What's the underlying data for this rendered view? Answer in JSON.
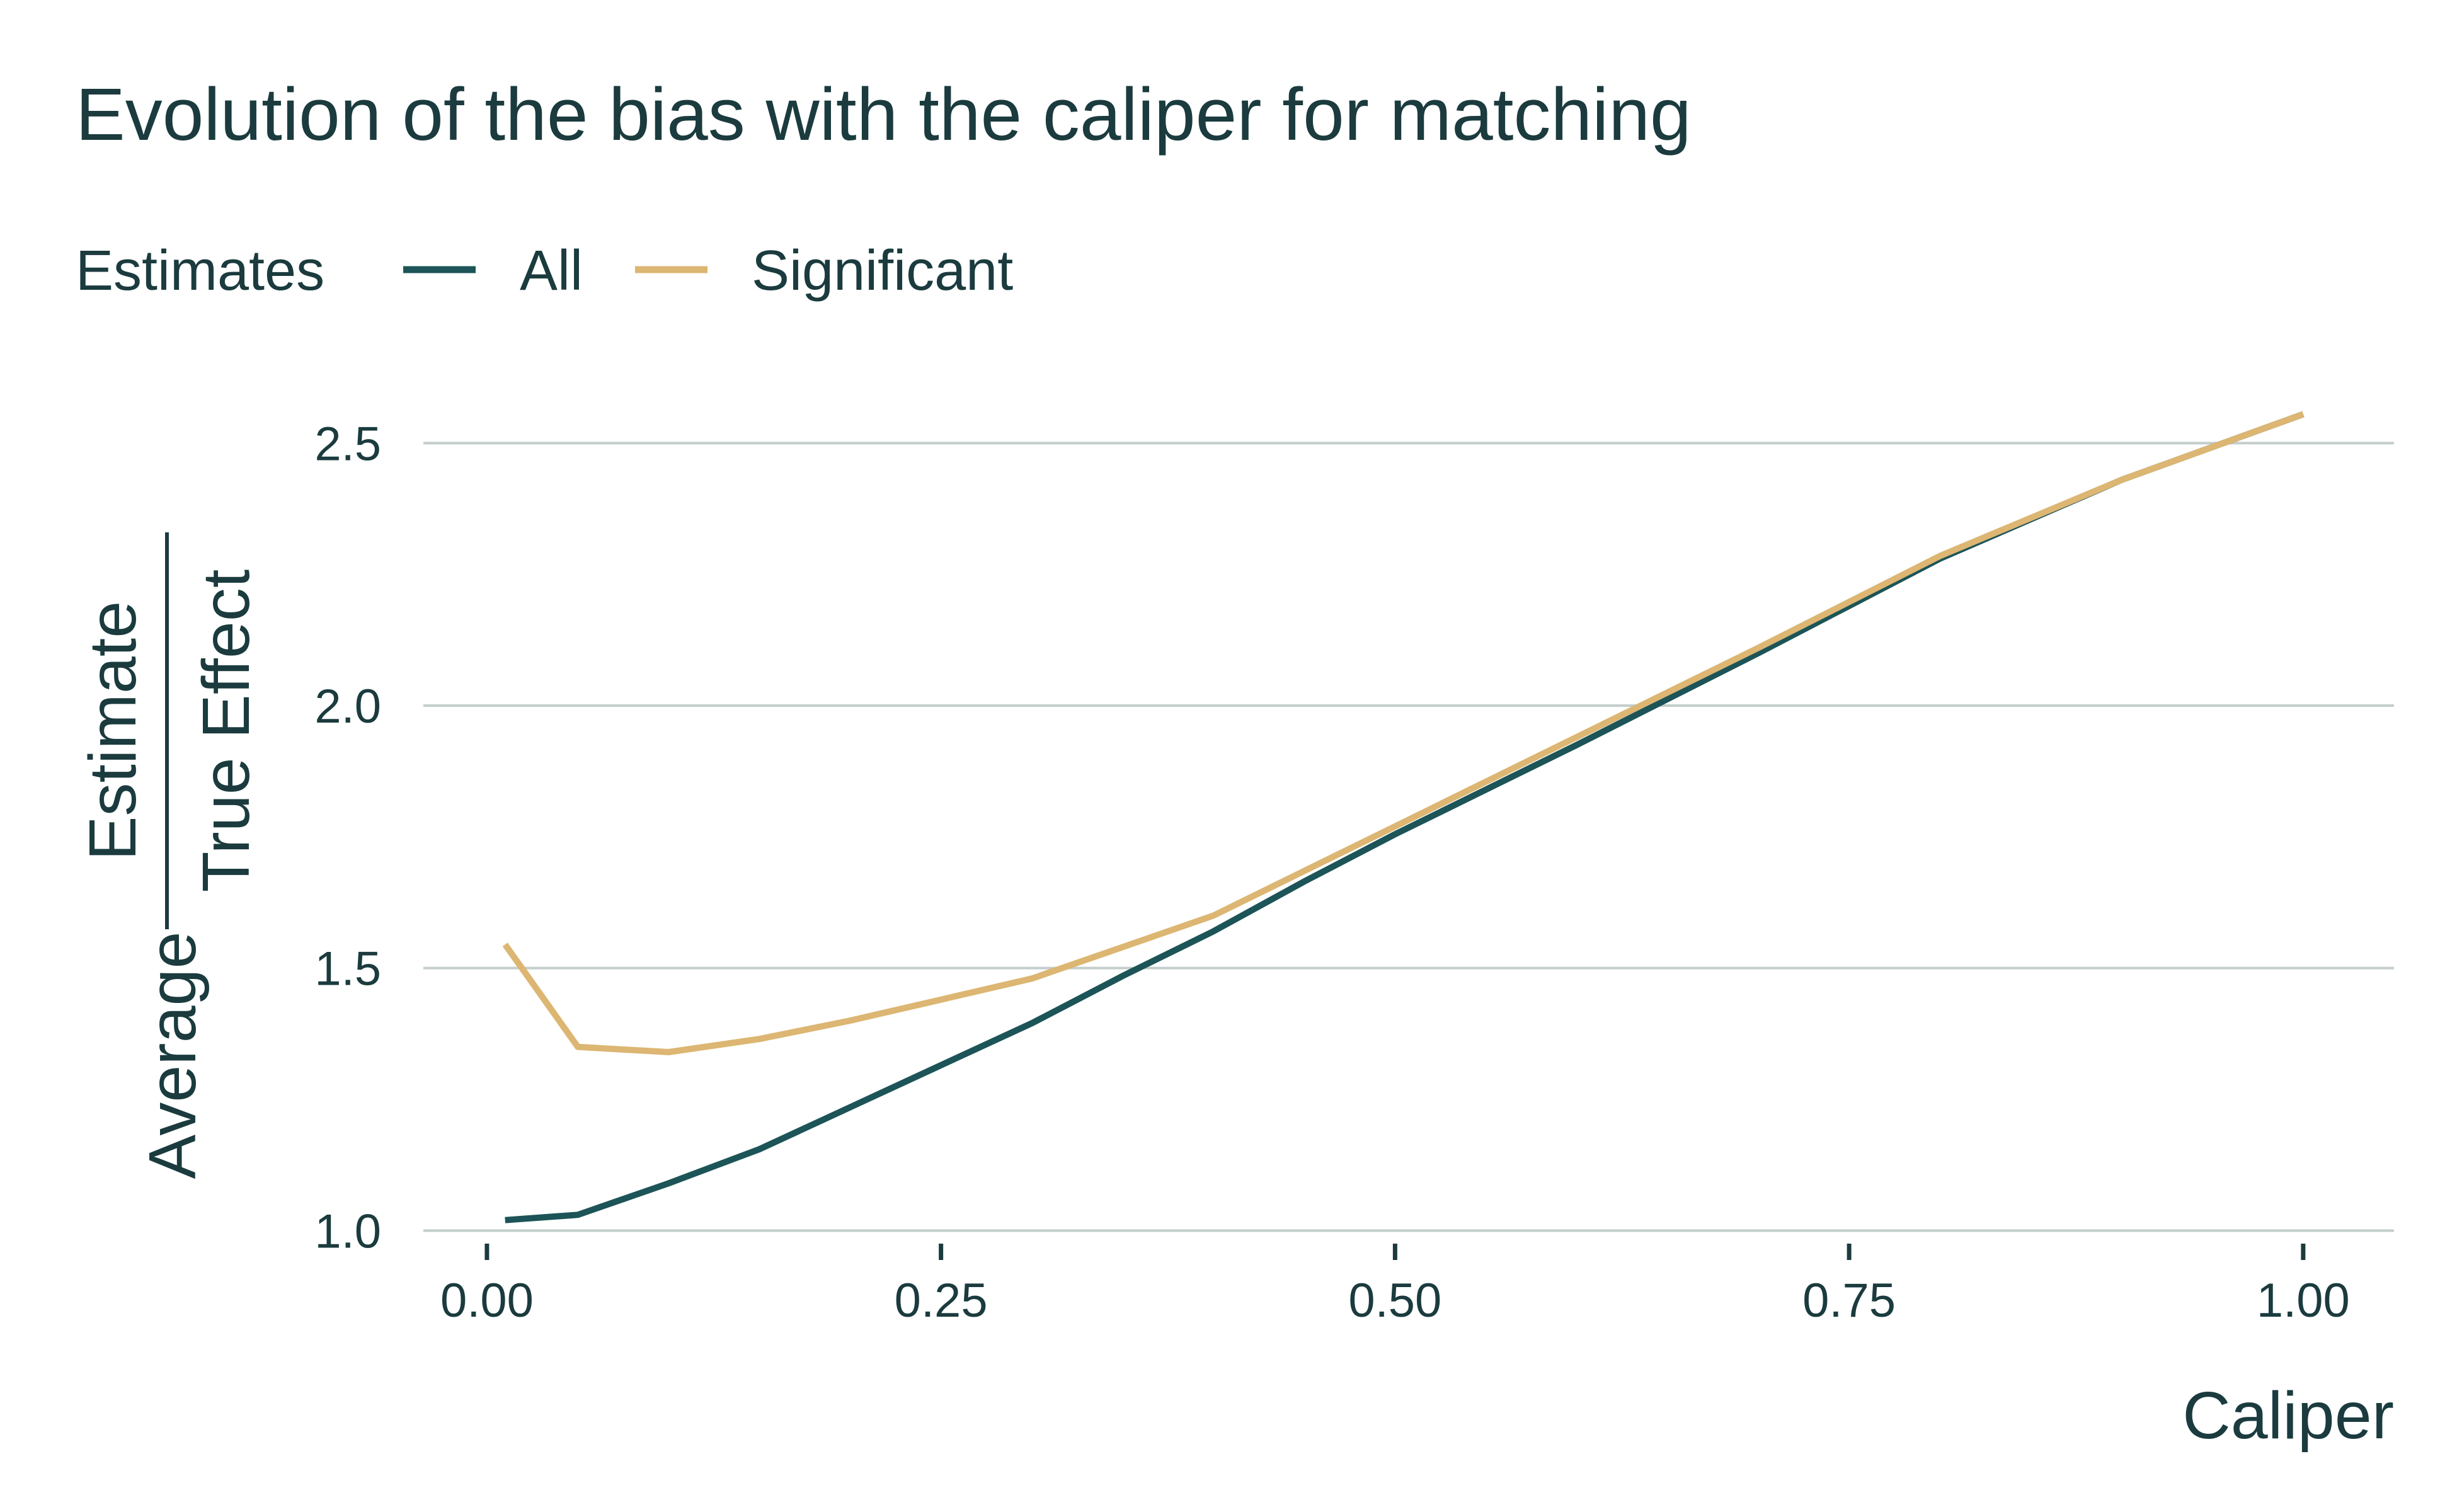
{
  "chart_data": {
    "type": "line",
    "title": "Evolution of the bias with the caliper for matching",
    "legend": {
      "title": "Estimates",
      "position": "top-left"
    },
    "xlabel": "Caliper",
    "ylabel": {
      "prefix": "Average",
      "numerator": "Estimate",
      "denominator": "True Effect"
    },
    "xlim": [
      -0.035,
      1.05
    ],
    "ylim": [
      0.98,
      2.6
    ],
    "x_ticks": [
      0.0,
      0.25,
      0.5,
      0.75,
      1.0
    ],
    "x_tick_labels": [
      "0.00",
      "0.25",
      "0.50",
      "0.75",
      "1.00"
    ],
    "y_ticks": [
      1.0,
      1.5,
      2.0,
      2.5
    ],
    "y_tick_labels": [
      "1.0",
      "1.5",
      "2.0",
      "2.5"
    ],
    "grid": "horizontal major",
    "series": [
      {
        "name": "All",
        "color": "#1c5458",
        "x": [
          0.01,
          0.05,
          0.1,
          0.15,
          0.2,
          0.25,
          0.3,
          0.35,
          0.4,
          0.45,
          0.5,
          0.6,
          0.7,
          0.8,
          0.9,
          1.0
        ],
        "y": [
          1.02,
          1.03,
          1.09,
          1.155,
          1.235,
          1.315,
          1.395,
          1.485,
          1.57,
          1.665,
          1.755,
          1.925,
          2.1,
          2.28,
          2.43,
          2.555
        ]
      },
      {
        "name": "Significant",
        "color": "#dcb672",
        "x": [
          0.01,
          0.05,
          0.1,
          0.15,
          0.2,
          0.25,
          0.3,
          0.35,
          0.4,
          0.45,
          0.5,
          0.6,
          0.7,
          0.8,
          0.9,
          1.0
        ],
        "y": [
          1.545,
          1.35,
          1.34,
          1.365,
          1.4,
          1.44,
          1.48,
          1.54,
          1.6,
          1.685,
          1.77,
          1.94,
          2.11,
          2.285,
          2.43,
          2.555
        ]
      }
    ]
  }
}
